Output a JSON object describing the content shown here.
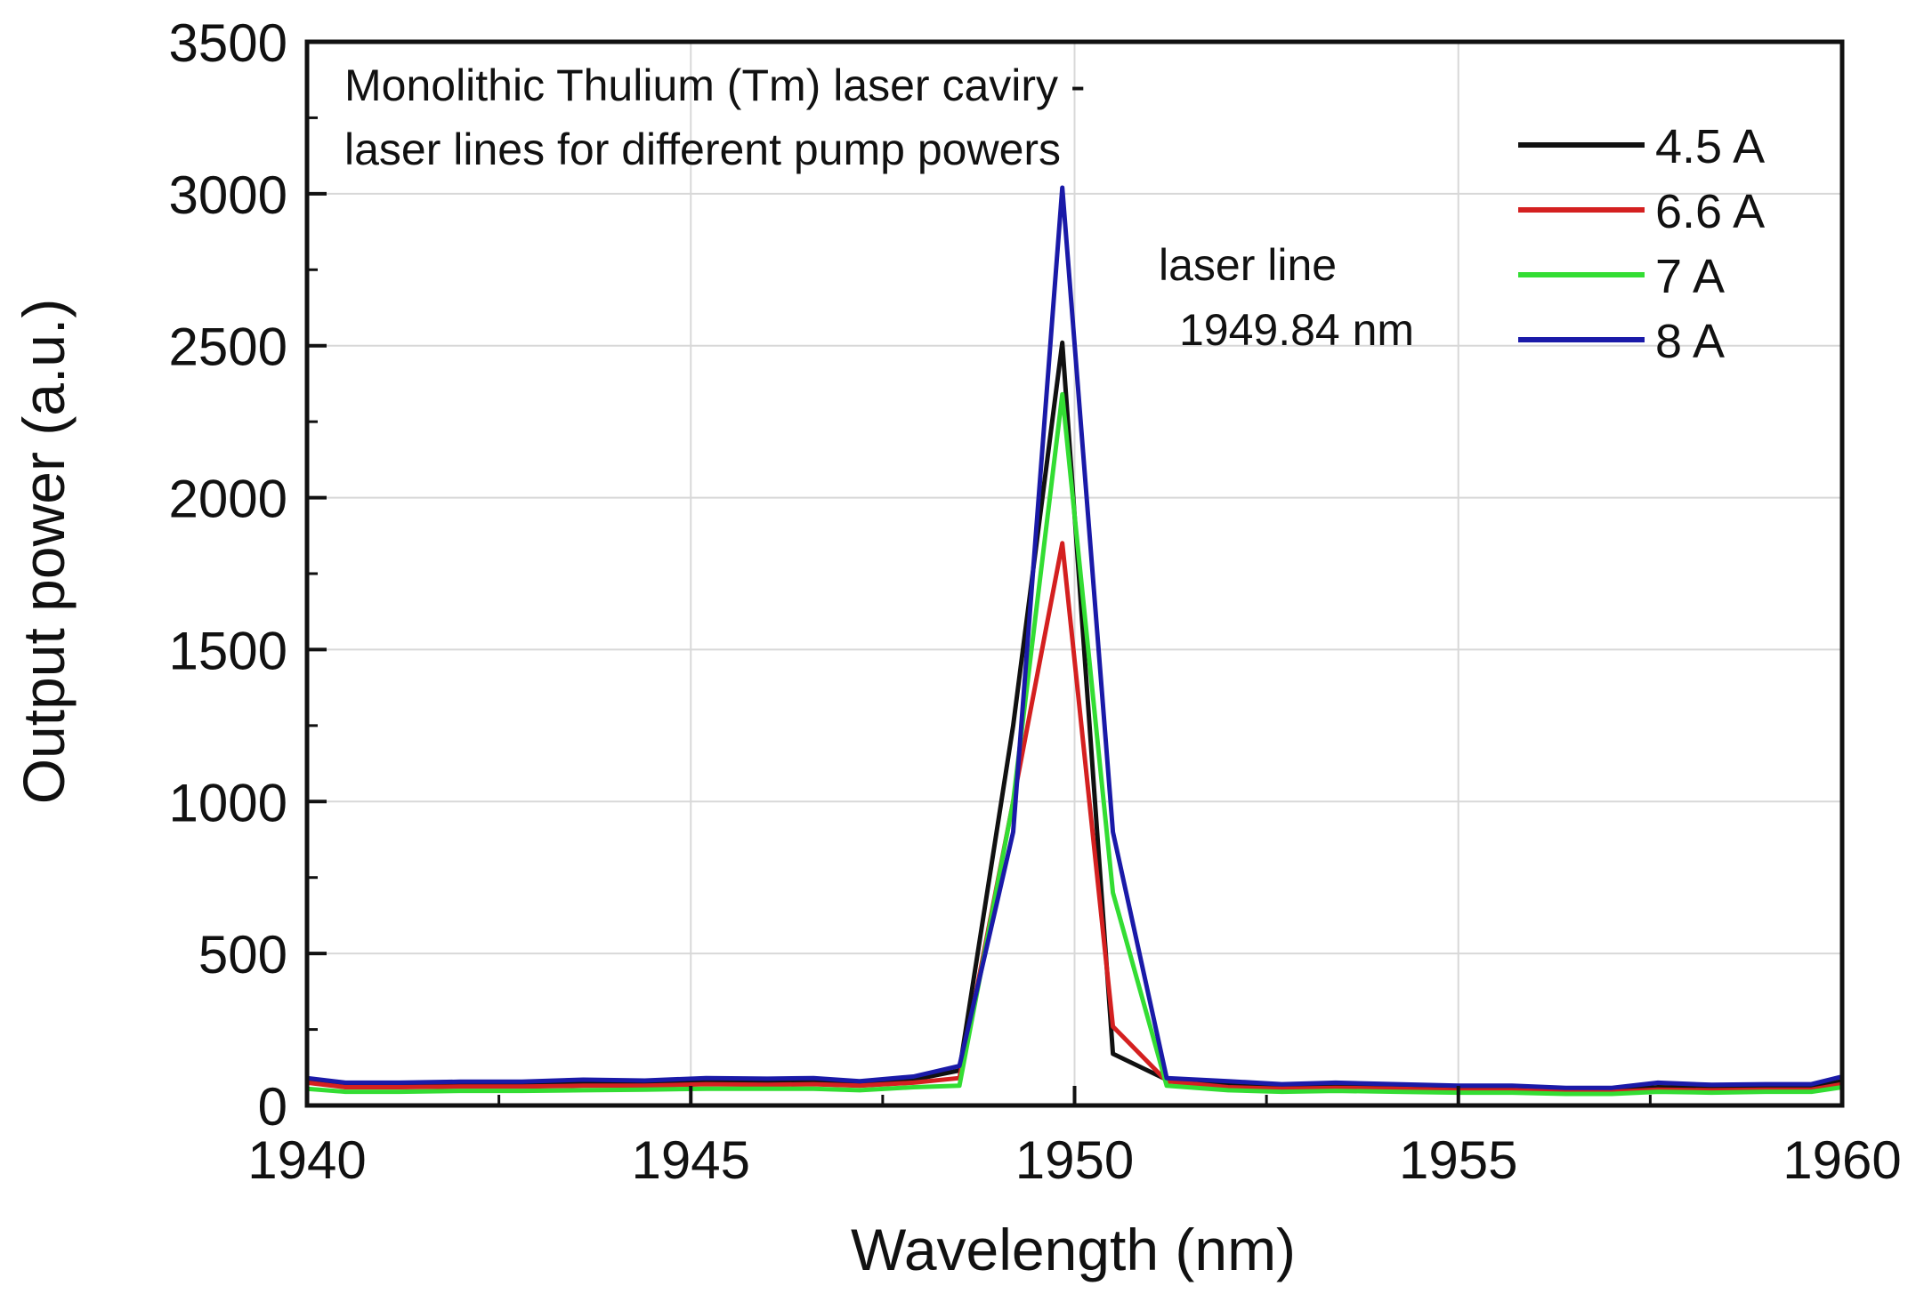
{
  "chart_data": {
    "type": "line",
    "annotation": {
      "title_line1": "Monolithic Thulium (Tm) laser caviry -",
      "title_line2": "laser lines for different pump powers",
      "peak_line1": "laser line",
      "peak_line2": "1949.84 nm"
    },
    "xlabel": "Wavelength (nm)",
    "ylabel": "Output power (a.u.)",
    "xlim": [
      1940,
      1960
    ],
    "ylim": [
      0,
      3500
    ],
    "xticks": [
      1940,
      1945,
      1950,
      1955,
      1960
    ],
    "yticks": [
      0,
      500,
      1000,
      1500,
      2000,
      2500,
      3000,
      3500
    ],
    "grid": true,
    "legend_position": "top-right",
    "x": [
      1940,
      1940.5,
      1941.2,
      1942,
      1942.8,
      1943.6,
      1944.4,
      1945.2,
      1946,
      1946.6,
      1947.2,
      1947.9,
      1948.5,
      1949.2,
      1949.84,
      1950.5,
      1951.2,
      1952,
      1952.7,
      1953.4,
      1954.2,
      1955,
      1955.7,
      1956.4,
      1957,
      1957.6,
      1958.3,
      1959,
      1959.6,
      1960
    ],
    "series": [
      {
        "name": "4.5 A",
        "color": "#111111",
        "values": [
          85,
          70,
          70,
          72,
          70,
          78,
          75,
          80,
          78,
          80,
          72,
          85,
          115,
          1250,
          2510,
          170,
          85,
          70,
          60,
          62,
          58,
          55,
          55,
          50,
          50,
          60,
          58,
          60,
          60,
          80
        ]
      },
      {
        "name": "6.6 A",
        "color": "#d42020",
        "values": [
          75,
          60,
          60,
          62,
          62,
          65,
          65,
          70,
          68,
          70,
          65,
          75,
          90,
          1000,
          1850,
          260,
          80,
          60,
          55,
          58,
          55,
          50,
          50,
          45,
          45,
          52,
          50,
          52,
          52,
          70
        ]
      },
      {
        "name": "7 A",
        "color": "#33dd33",
        "values": [
          55,
          45,
          45,
          48,
          48,
          50,
          52,
          55,
          55,
          55,
          50,
          60,
          65,
          1000,
          2340,
          700,
          65,
          50,
          45,
          48,
          45,
          42,
          42,
          38,
          38,
          45,
          42,
          45,
          45,
          60
        ]
      },
      {
        "name": "8 A",
        "color": "#1a1aa8",
        "values": [
          90,
          75,
          75,
          78,
          78,
          85,
          82,
          90,
          88,
          90,
          80,
          95,
          130,
          900,
          3020,
          900,
          90,
          80,
          70,
          75,
          70,
          65,
          65,
          58,
          58,
          75,
          68,
          70,
          70,
          95
        ]
      }
    ]
  }
}
